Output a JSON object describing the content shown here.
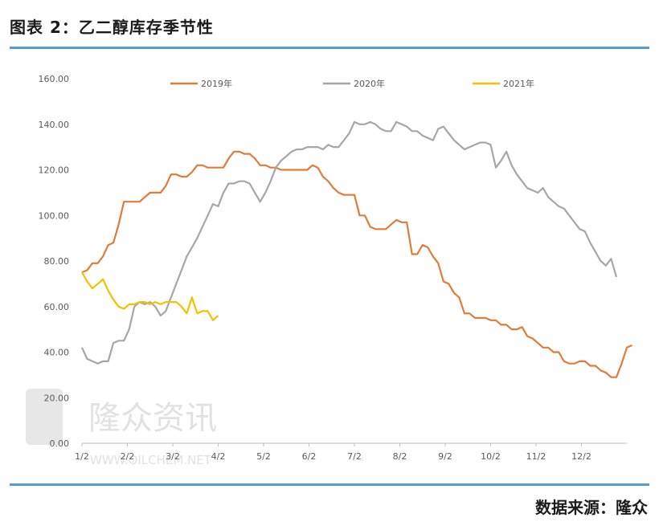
{
  "header": {
    "title": "图表 2：乙二醇库存季节性"
  },
  "footer": {
    "source": "数据来源：隆众"
  },
  "watermark": {
    "brand": "隆众资讯",
    "url": "WWW.OILCHEM.NET"
  },
  "chart_data": {
    "type": "line",
    "x_ticks": [
      "1/2",
      "2/2",
      "3/2",
      "4/2",
      "5/2",
      "6/2",
      "7/2",
      "8/2",
      "9/2",
      "10/2",
      "11/2",
      "12/2"
    ],
    "y_ticks": [
      "0.00",
      "20.00",
      "40.00",
      "60.00",
      "80.00",
      "100.00",
      "120.00",
      "140.00",
      "160.00"
    ],
    "ylim": [
      0,
      160
    ],
    "x_unit": "week index (0 = 1/2, ~4.3 weeks per month tick)",
    "legend_position": "top",
    "grid": false,
    "series": [
      {
        "name": "2019年",
        "color": "#e07b39",
        "points": [
          [
            0,
            75
          ],
          [
            0.5,
            76
          ],
          [
            1,
            79
          ],
          [
            1.5,
            79
          ],
          [
            2,
            82
          ],
          [
            2.5,
            87
          ],
          [
            3,
            88
          ],
          [
            3.5,
            96
          ],
          [
            4,
            106
          ],
          [
            4.5,
            106
          ],
          [
            5,
            106
          ],
          [
            5.5,
            106
          ],
          [
            6,
            108
          ],
          [
            6.5,
            110
          ],
          [
            7,
            110
          ],
          [
            7.5,
            110
          ],
          [
            8,
            113
          ],
          [
            8.5,
            118
          ],
          [
            9,
            118
          ],
          [
            9.5,
            117
          ],
          [
            10,
            117
          ],
          [
            10.5,
            119
          ],
          [
            11,
            122
          ],
          [
            11.5,
            122
          ],
          [
            12,
            121
          ],
          [
            12.5,
            121
          ],
          [
            13,
            121
          ],
          [
            13.5,
            121
          ],
          [
            14,
            125
          ],
          [
            14.5,
            128
          ],
          [
            15,
            128
          ],
          [
            15.5,
            127
          ],
          [
            16,
            127
          ],
          [
            16.5,
            125
          ],
          [
            17,
            122
          ],
          [
            17.5,
            122
          ],
          [
            18,
            121
          ],
          [
            18.5,
            121
          ],
          [
            19,
            120
          ],
          [
            19.5,
            120
          ],
          [
            20,
            120
          ],
          [
            20.5,
            120
          ],
          [
            21,
            120
          ],
          [
            21.5,
            120
          ],
          [
            22,
            122
          ],
          [
            22.5,
            121
          ],
          [
            23,
            117
          ],
          [
            23.5,
            115
          ],
          [
            24,
            112
          ],
          [
            24.5,
            110
          ],
          [
            25,
            109
          ],
          [
            25.5,
            109
          ],
          [
            26,
            109
          ],
          [
            26.5,
            100
          ],
          [
            27,
            100
          ],
          [
            27.5,
            95
          ],
          [
            28,
            94
          ],
          [
            28.5,
            94
          ],
          [
            29,
            94
          ],
          [
            29.5,
            96
          ],
          [
            30,
            98
          ],
          [
            30.5,
            97
          ],
          [
            31,
            97
          ],
          [
            31.5,
            83
          ],
          [
            32,
            83
          ],
          [
            32.5,
            87
          ],
          [
            33,
            86
          ],
          [
            33.5,
            82
          ],
          [
            34,
            79
          ],
          [
            34.5,
            71
          ],
          [
            35,
            70
          ],
          [
            35.5,
            66
          ],
          [
            36,
            64
          ],
          [
            36.5,
            57
          ],
          [
            37,
            57
          ],
          [
            37.5,
            55
          ],
          [
            38,
            55
          ],
          [
            38.5,
            55
          ],
          [
            39,
            54
          ],
          [
            39.5,
            54
          ],
          [
            40,
            52
          ],
          [
            40.5,
            52
          ],
          [
            41,
            50
          ],
          [
            41.5,
            50
          ],
          [
            42,
            51
          ],
          [
            42.5,
            47
          ],
          [
            43,
            46
          ],
          [
            43.5,
            44
          ],
          [
            44,
            42
          ],
          [
            44.5,
            42
          ],
          [
            45,
            40
          ],
          [
            45.5,
            40
          ],
          [
            46,
            36
          ],
          [
            46.5,
            35
          ],
          [
            47,
            35
          ],
          [
            47.5,
            36
          ],
          [
            48,
            36
          ],
          [
            48.5,
            34
          ],
          [
            49,
            34
          ],
          [
            49.5,
            32
          ],
          [
            50,
            31
          ],
          [
            50.5,
            29
          ],
          [
            51,
            29
          ],
          [
            51.5,
            35
          ],
          [
            52,
            42
          ],
          [
            52.5,
            43
          ]
        ]
      },
      {
        "name": "2020年",
        "color": "#a6a6a6",
        "points": [
          [
            0,
            42
          ],
          [
            0.5,
            37
          ],
          [
            1,
            36
          ],
          [
            1.5,
            35
          ],
          [
            2,
            36
          ],
          [
            2.5,
            36
          ],
          [
            3,
            44
          ],
          [
            3.5,
            45
          ],
          [
            4,
            45
          ],
          [
            4.5,
            50
          ],
          [
            5,
            60
          ],
          [
            5.5,
            62
          ],
          [
            6,
            61
          ],
          [
            6.5,
            62
          ],
          [
            7,
            60
          ],
          [
            7.5,
            56
          ],
          [
            8,
            58
          ],
          [
            8.5,
            64
          ],
          [
            9,
            70
          ],
          [
            9.5,
            76
          ],
          [
            10,
            82
          ],
          [
            10.5,
            86
          ],
          [
            11,
            90
          ],
          [
            11.5,
            95
          ],
          [
            12,
            100
          ],
          [
            12.5,
            105
          ],
          [
            13,
            104
          ],
          [
            13.5,
            110
          ],
          [
            14,
            114
          ],
          [
            14.5,
            114
          ],
          [
            15,
            115
          ],
          [
            15.5,
            115
          ],
          [
            16,
            114
          ],
          [
            16.5,
            110
          ],
          [
            17,
            106
          ],
          [
            17.5,
            110
          ],
          [
            18,
            115
          ],
          [
            18.5,
            121
          ],
          [
            19,
            124
          ],
          [
            19.5,
            126
          ],
          [
            20,
            128
          ],
          [
            20.5,
            129
          ],
          [
            21,
            129
          ],
          [
            21.5,
            130
          ],
          [
            22,
            130
          ],
          [
            22.5,
            130
          ],
          [
            23,
            129
          ],
          [
            23.5,
            131
          ],
          [
            24,
            130
          ],
          [
            24.5,
            130
          ],
          [
            25,
            133
          ],
          [
            25.5,
            136
          ],
          [
            26,
            141
          ],
          [
            26.5,
            140
          ],
          [
            27,
            140
          ],
          [
            27.5,
            141
          ],
          [
            28,
            140
          ],
          [
            28.5,
            138
          ],
          [
            29,
            137
          ],
          [
            29.5,
            137
          ],
          [
            30,
            141
          ],
          [
            30.5,
            140
          ],
          [
            31,
            139
          ],
          [
            31.5,
            137
          ],
          [
            32,
            137
          ],
          [
            32.5,
            135
          ],
          [
            33,
            134
          ],
          [
            33.5,
            133
          ],
          [
            34,
            138
          ],
          [
            34.5,
            139
          ],
          [
            35,
            136
          ],
          [
            35.5,
            133
          ],
          [
            36,
            131
          ],
          [
            36.5,
            129
          ],
          [
            37,
            130
          ],
          [
            37.5,
            131
          ],
          [
            38,
            132
          ],
          [
            38.5,
            132
          ],
          [
            39,
            131
          ],
          [
            39.5,
            121
          ],
          [
            40,
            124
          ],
          [
            40.5,
            128
          ],
          [
            41,
            122
          ],
          [
            41.5,
            118
          ],
          [
            42,
            115
          ],
          [
            42.5,
            112
          ],
          [
            43,
            111
          ],
          [
            43.5,
            110
          ],
          [
            44,
            112
          ],
          [
            44.5,
            108
          ],
          [
            45,
            106
          ],
          [
            45.5,
            104
          ],
          [
            46,
            103
          ],
          [
            46.5,
            100
          ],
          [
            47,
            97
          ],
          [
            47.5,
            94
          ],
          [
            48,
            93
          ],
          [
            48.5,
            88
          ],
          [
            49,
            84
          ],
          [
            49.5,
            80
          ],
          [
            50,
            78
          ],
          [
            50.5,
            81
          ],
          [
            51,
            73
          ]
        ]
      },
      {
        "name": "2021年",
        "color": "#f5c000",
        "points": [
          [
            0,
            75
          ],
          [
            0.5,
            71
          ],
          [
            1,
            68
          ],
          [
            1.5,
            70
          ],
          [
            2,
            72
          ],
          [
            2.5,
            67
          ],
          [
            3,
            63
          ],
          [
            3.5,
            60
          ],
          [
            4,
            59
          ],
          [
            4.5,
            61
          ],
          [
            5,
            61
          ],
          [
            5.5,
            62
          ],
          [
            6,
            62
          ],
          [
            6.5,
            61
          ],
          [
            7,
            62
          ],
          [
            7.5,
            61
          ],
          [
            8,
            62
          ],
          [
            8.5,
            62
          ],
          [
            9,
            62
          ],
          [
            9.5,
            60
          ],
          [
            10,
            57
          ],
          [
            10.5,
            64
          ],
          [
            11,
            57
          ],
          [
            11.5,
            58
          ],
          [
            12,
            58
          ],
          [
            12.5,
            54
          ],
          [
            13,
            56
          ]
        ]
      }
    ]
  }
}
